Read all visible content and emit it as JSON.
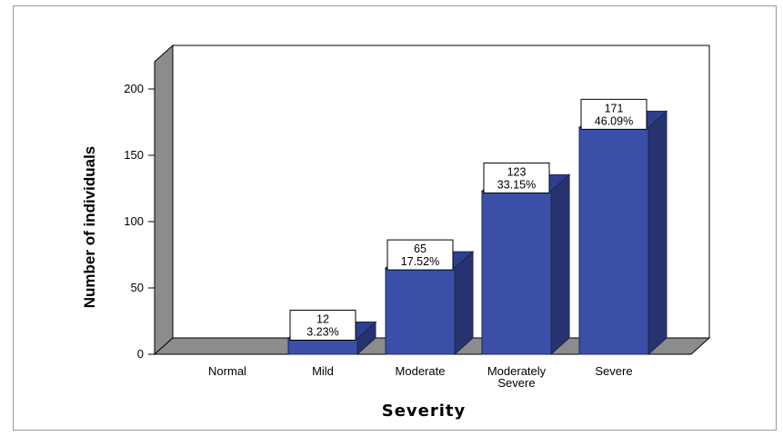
{
  "chart_data": {
    "type": "bar",
    "title": "",
    "xlabel": "Severity",
    "ylabel": "Number of individuals",
    "ylim": [
      0,
      200
    ],
    "yticks": [
      0,
      50,
      100,
      150,
      200
    ],
    "grid": false,
    "three_d": true,
    "categories": [
      [
        "Normal"
      ],
      [
        "Mild"
      ],
      [
        "Moderate"
      ],
      [
        "Moderately",
        "Severe"
      ],
      [
        "Severe"
      ]
    ],
    "values": [
      0,
      12,
      65,
      123,
      171
    ],
    "value_labels": [
      "",
      "12",
      "65",
      "123",
      "171"
    ],
    "percent_labels": [
      "",
      "3.23%",
      "17.52%",
      "33.15%",
      "46.09%"
    ],
    "colors": {
      "bar_front": "#3b4fa9",
      "bar_top": "#2e3f8f",
      "bar_side": "#27336f",
      "back_wall": "#ffffff",
      "side_wall": "#8c8c8c",
      "floor": "#8c8c8c"
    }
  }
}
